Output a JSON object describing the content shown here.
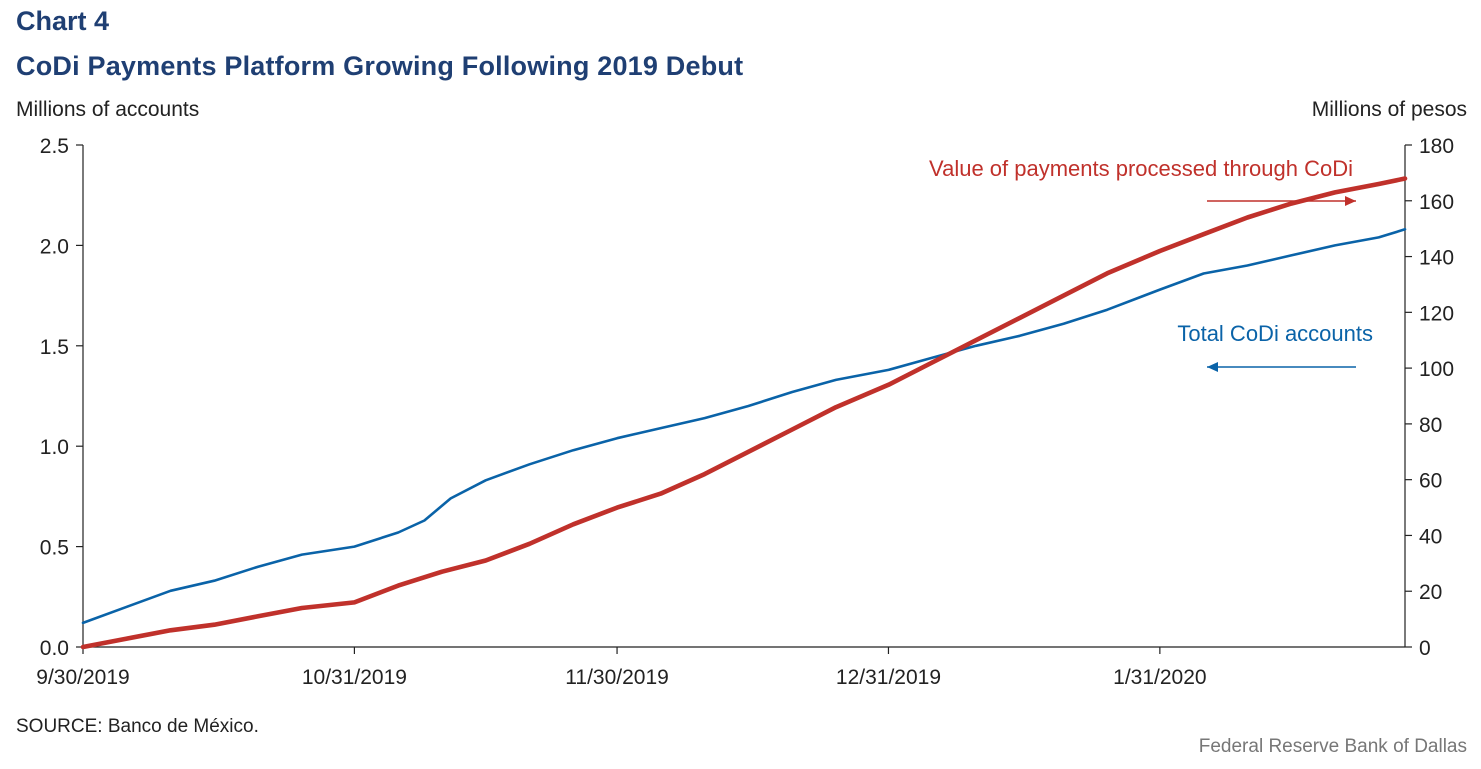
{
  "header": {
    "label": "Chart 4",
    "title": "CoDi Payments Platform Growing Following 2019 Debut"
  },
  "footer": {
    "source": "SOURCE: Banco de México.",
    "credit": "Federal Reserve Bank of Dallas"
  },
  "colors": {
    "title": "#1f3f73",
    "accounts": "#0a63a8",
    "payments": "#c0312b",
    "axis": "#222222"
  },
  "chart_data": {
    "type": "line",
    "title": "CoDi Payments Platform Growing Following 2019 Debut",
    "grid": false,
    "x_range": [
      "2019-09-30",
      "2020-02-28"
    ],
    "x_ticks": [
      "9/30/2019",
      "10/31/2019",
      "11/30/2019",
      "12/31/2019",
      "1/31/2020"
    ],
    "left_axis": {
      "label": "Millions of accounts",
      "range": [
        0,
        2.5
      ],
      "ticks": [
        "0.0",
        "0.5",
        "1.0",
        "1.5",
        "2.0",
        "2.5"
      ]
    },
    "right_axis": {
      "label": "Millions of pesos",
      "range": [
        0,
        180
      ],
      "ticks": [
        "0",
        "20",
        "40",
        "60",
        "80",
        "100",
        "120",
        "140",
        "160",
        "180"
      ]
    },
    "series": [
      {
        "name": "Total CoDi accounts",
        "axis": "left",
        "annotation_arrow": "left",
        "points": [
          [
            "2019-09-30",
            0.12
          ],
          [
            "2019-10-05",
            0.2
          ],
          [
            "2019-10-10",
            0.28
          ],
          [
            "2019-10-15",
            0.33
          ],
          [
            "2019-10-20",
            0.4
          ],
          [
            "2019-10-25",
            0.46
          ],
          [
            "2019-10-31",
            0.5
          ],
          [
            "2019-11-05",
            0.57
          ],
          [
            "2019-11-08",
            0.63
          ],
          [
            "2019-11-11",
            0.74
          ],
          [
            "2019-11-15",
            0.83
          ],
          [
            "2019-11-20",
            0.91
          ],
          [
            "2019-11-25",
            0.98
          ],
          [
            "2019-11-30",
            1.04
          ],
          [
            "2019-12-05",
            1.09
          ],
          [
            "2019-12-10",
            1.14
          ],
          [
            "2019-12-15",
            1.2
          ],
          [
            "2019-12-20",
            1.27
          ],
          [
            "2019-12-25",
            1.33
          ],
          [
            "2019-12-31",
            1.38
          ],
          [
            "2020-01-05",
            1.44
          ],
          [
            "2020-01-10",
            1.5
          ],
          [
            "2020-01-15",
            1.55
          ],
          [
            "2020-01-20",
            1.61
          ],
          [
            "2020-01-25",
            1.68
          ],
          [
            "2020-01-31",
            1.78
          ],
          [
            "2020-02-05",
            1.86
          ],
          [
            "2020-02-10",
            1.9
          ],
          [
            "2020-02-15",
            1.95
          ],
          [
            "2020-02-20",
            2.0
          ],
          [
            "2020-02-25",
            2.04
          ],
          [
            "2020-02-28",
            2.08
          ]
        ]
      },
      {
        "name": "Value of payments processed through CoDi",
        "axis": "right",
        "annotation_arrow": "right",
        "points": [
          [
            "2019-09-30",
            0
          ],
          [
            "2019-10-05",
            3
          ],
          [
            "2019-10-10",
            6
          ],
          [
            "2019-10-15",
            8
          ],
          [
            "2019-10-20",
            11
          ],
          [
            "2019-10-25",
            14
          ],
          [
            "2019-10-31",
            16
          ],
          [
            "2019-11-05",
            22
          ],
          [
            "2019-11-10",
            27
          ],
          [
            "2019-11-15",
            31
          ],
          [
            "2019-11-20",
            37
          ],
          [
            "2019-11-25",
            44
          ],
          [
            "2019-11-30",
            50
          ],
          [
            "2019-12-05",
            55
          ],
          [
            "2019-12-10",
            62
          ],
          [
            "2019-12-15",
            70
          ],
          [
            "2019-12-20",
            78
          ],
          [
            "2019-12-25",
            86
          ],
          [
            "2019-12-31",
            94
          ],
          [
            "2020-01-05",
            102
          ],
          [
            "2020-01-10",
            110
          ],
          [
            "2020-01-15",
            118
          ],
          [
            "2020-01-20",
            126
          ],
          [
            "2020-01-25",
            134
          ],
          [
            "2020-01-31",
            142
          ],
          [
            "2020-02-05",
            148
          ],
          [
            "2020-02-10",
            154
          ],
          [
            "2020-02-15",
            159
          ],
          [
            "2020-02-20",
            163
          ],
          [
            "2020-02-25",
            166
          ],
          [
            "2020-02-28",
            168
          ]
        ]
      }
    ]
  }
}
